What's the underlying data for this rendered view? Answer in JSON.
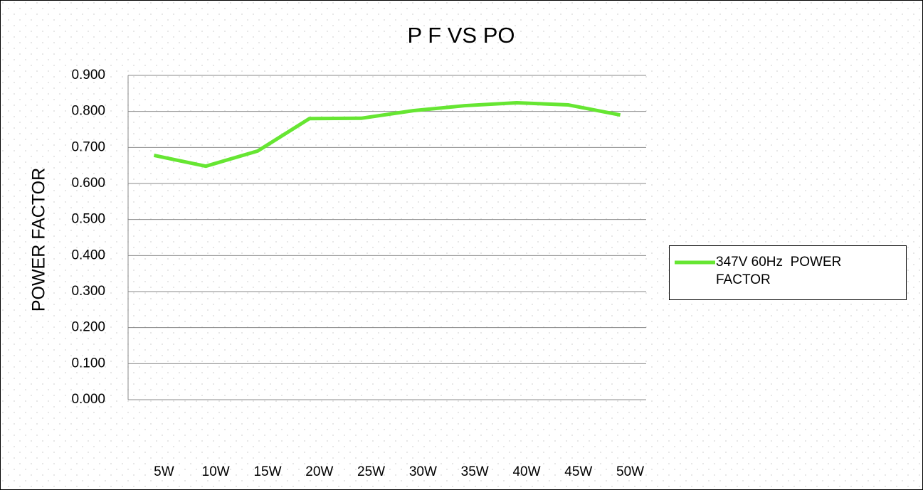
{
  "chart_data": {
    "type": "line",
    "title": "P F VS PO",
    "y_label": "POWER FACTOR",
    "categories": [
      "5W",
      "10W",
      "15W",
      "20W",
      "25W",
      "30W",
      "35W",
      "40W",
      "45W",
      "50W"
    ],
    "series": [
      {
        "name": "347V 60Hz  POWER FACTOR",
        "color": "#66e632",
        "values": [
          0.678,
          0.648,
          0.69,
          0.78,
          0.781,
          0.802,
          0.816,
          0.824,
          0.818,
          0.79
        ]
      }
    ],
    "ylim": [
      0,
      0.9
    ],
    "yticks": [
      {
        "value": 0,
        "label": "0.000"
      },
      {
        "value": 0.1,
        "label": "0.100"
      },
      {
        "value": 0.2,
        "label": "0.200"
      },
      {
        "value": 0.3,
        "label": "0.300"
      },
      {
        "value": 0.4,
        "label": "0.400"
      },
      {
        "value": 0.5,
        "label": "0.500"
      },
      {
        "value": 0.6,
        "label": "0.600"
      },
      {
        "value": 0.7,
        "label": "0.700"
      },
      {
        "value": 0.8,
        "label": "0.800"
      },
      {
        "value": 0.9,
        "label": "0.900"
      }
    ],
    "grid": true,
    "legend": "right"
  }
}
